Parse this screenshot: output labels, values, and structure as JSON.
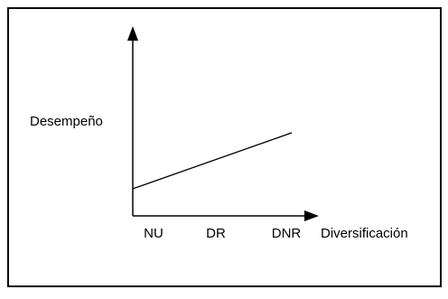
{
  "y_axis": {
    "label": "Desempeño"
  },
  "x_axis": {
    "label": "Diversificación",
    "categories": [
      "NU",
      "DR",
      "DNR"
    ]
  }
}
